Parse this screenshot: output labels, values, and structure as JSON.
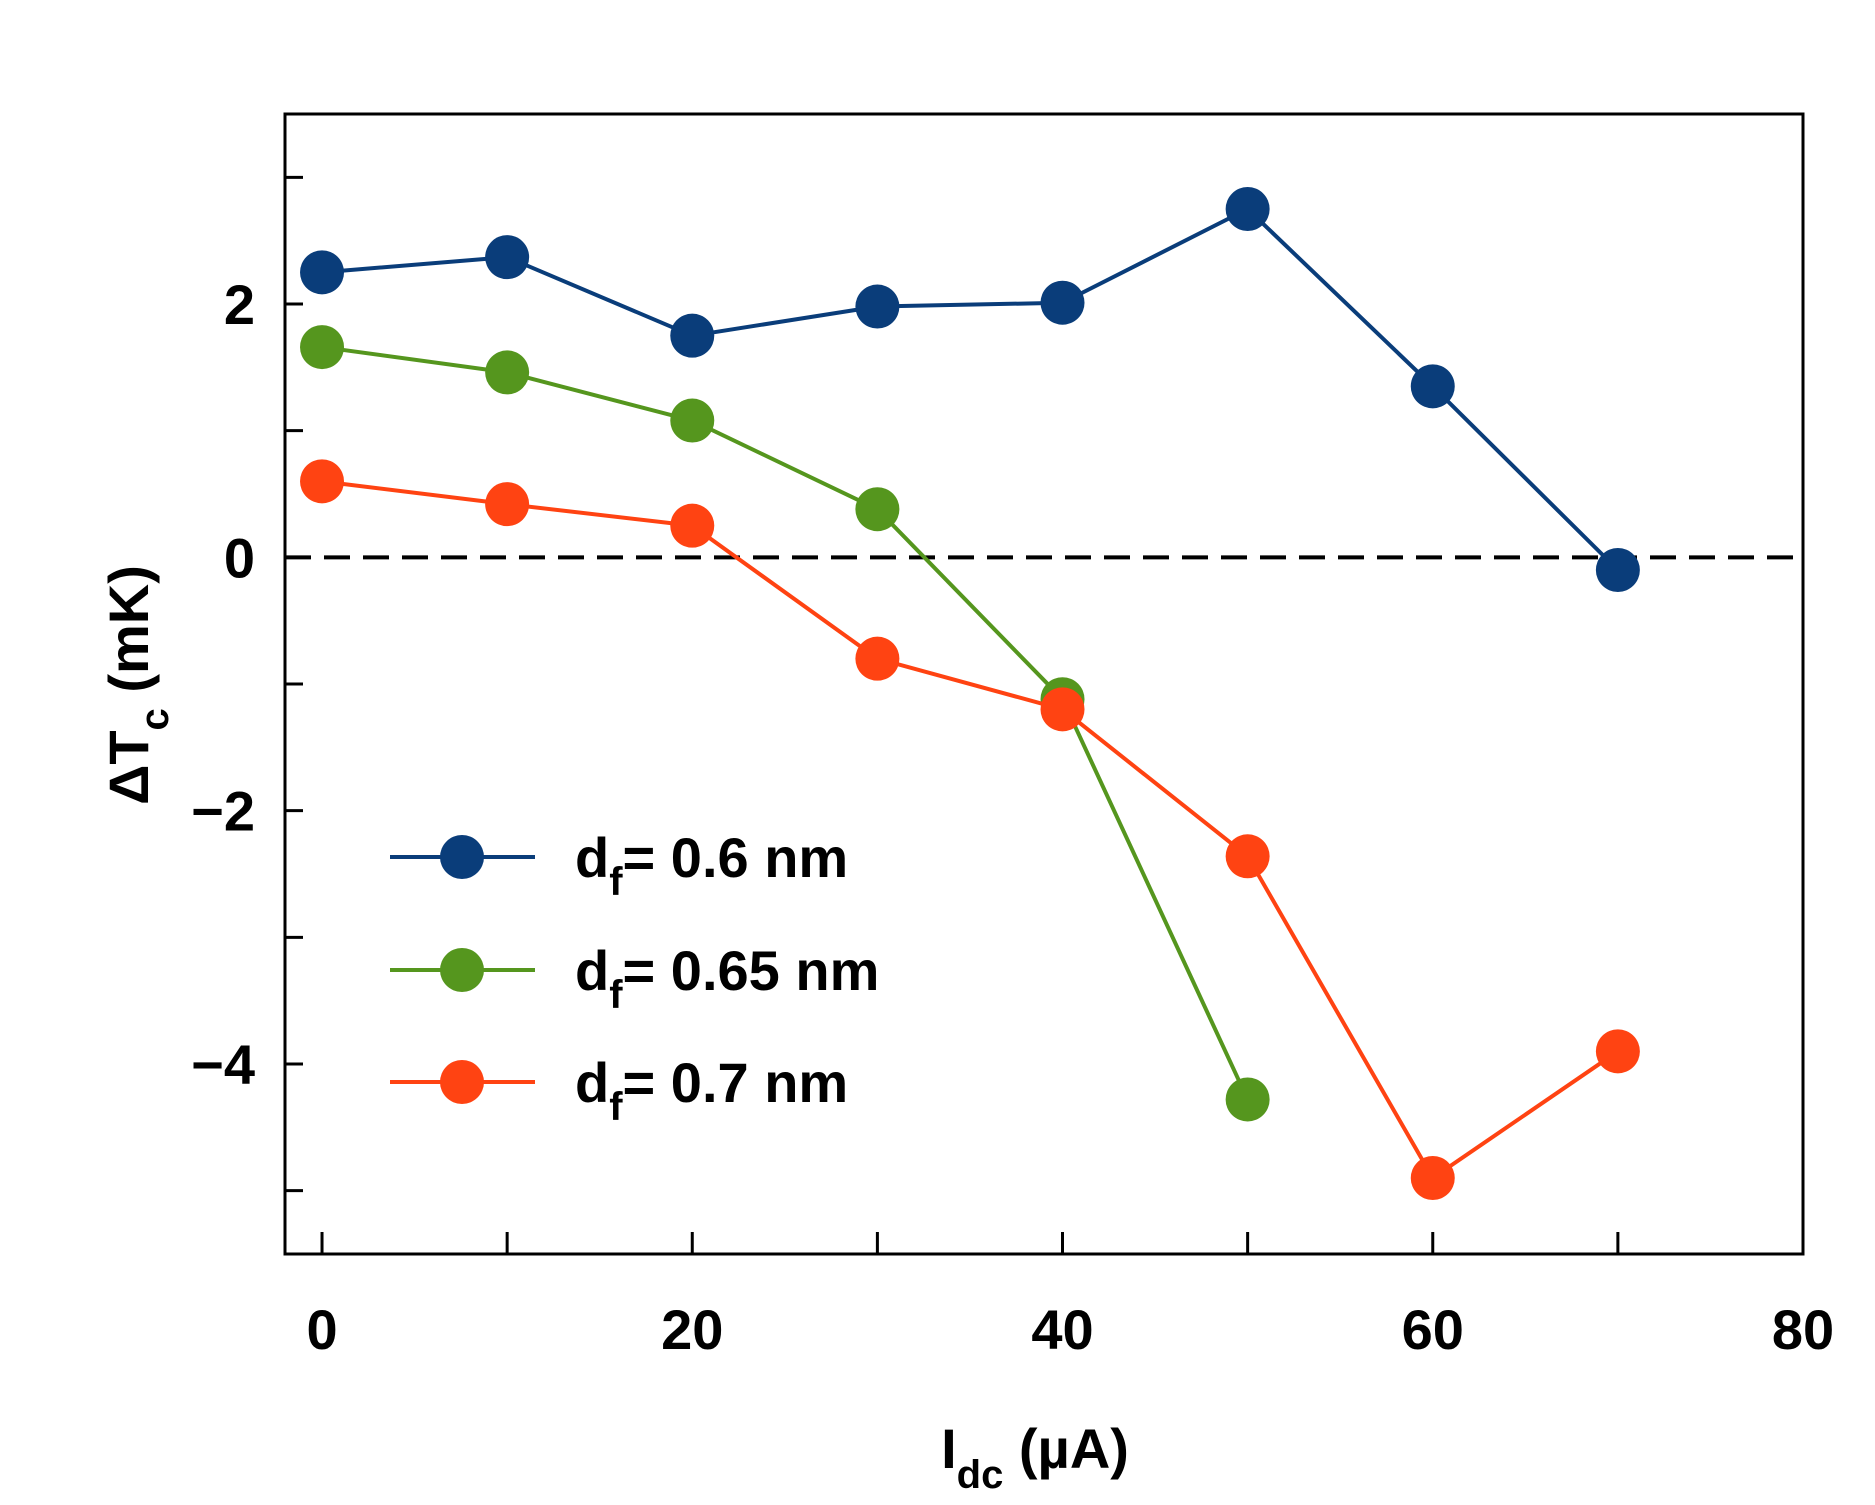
{
  "chart_data": {
    "type": "line",
    "xlabel": {
      "main": "I",
      "sub": "dc",
      "unit": " (µA)"
    },
    "ylabel": {
      "main": "ΔT",
      "sub": "c",
      "unit": " (mK)"
    },
    "xlim": [
      -2,
      80
    ],
    "ylim": [
      -5.5,
      3.5
    ],
    "xticks": [
      0,
      20,
      40,
      60,
      80
    ],
    "xticks_minor": [
      10,
      30,
      50,
      70
    ],
    "yticks": [
      -4,
      -2,
      0,
      2
    ],
    "ytick_labels": [
      "−4",
      "−2",
      "0",
      "2"
    ],
    "yticks_minor": [
      -5,
      -3,
      -1,
      1,
      3
    ],
    "reference_line": {
      "y": 0,
      "style": "dashed",
      "color": "#000000"
    },
    "legend_position": "lower-left",
    "series": [
      {
        "name": "df= 0.6 nm",
        "label_main": "d",
        "label_sub": "f",
        "label_rest": "= 0.6 nm",
        "color": "#0a3d7a",
        "x": [
          0,
          10,
          20,
          30,
          40,
          50,
          60,
          70
        ],
        "y": [
          2.25,
          2.37,
          1.75,
          1.98,
          2.01,
          2.75,
          1.35,
          -0.1
        ]
      },
      {
        "name": "df= 0.65 nm",
        "label_main": "d",
        "label_sub": "f",
        "label_rest": "= 0.65 nm",
        "color": "#55961e",
        "x": [
          0,
          10,
          20,
          30,
          40,
          50
        ],
        "y": [
          1.66,
          1.46,
          1.08,
          0.38,
          -1.12,
          -4.28
        ]
      },
      {
        "name": "df= 0.7 nm",
        "label_main": "d",
        "label_sub": "f",
        "label_rest": "= 0.7 nm",
        "color": "#ff4312",
        "x": [
          0,
          10,
          20,
          30,
          40,
          50,
          60,
          70
        ],
        "y": [
          0.6,
          0.42,
          0.25,
          -0.8,
          -1.2,
          -2.36,
          -4.9,
          -3.9
        ]
      }
    ]
  }
}
